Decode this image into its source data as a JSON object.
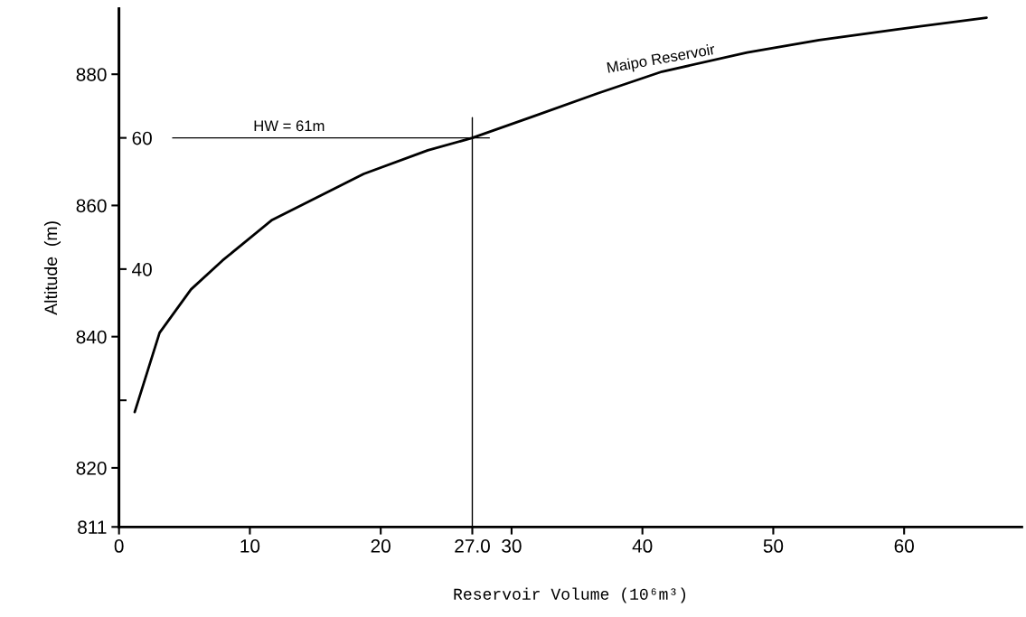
{
  "chart_data": {
    "type": "line",
    "xlabel": "Reservoir Volume (10⁶m³)",
    "ylabel": "Altitude  (m)",
    "xlim": [
      0,
      69
    ],
    "xticks": [
      0,
      10,
      20,
      {
        "value": 27,
        "label": "27.0"
      },
      30,
      40,
      50,
      60
    ],
    "ylim": [
      811,
      890
    ],
    "yticks": [
      811,
      820,
      840,
      860,
      880
    ],
    "y2lim": [
      0.7,
      79.7
    ],
    "y2ticks": [
      {
        "value": 20,
        "label": null
      },
      40,
      60
    ],
    "grid": false,
    "legend": false,
    "marker": "none",
    "line_style": "solid",
    "series": [
      {
        "name": "Maipo Reservoir",
        "color": "#000000",
        "x": [
          1.2,
          3.1,
          5.5,
          7.9,
          11.7,
          18.7,
          23.6,
          27,
          31.7,
          36.6,
          41.5,
          48,
          53.5,
          59.3,
          66.3
        ],
        "values": [
          828.5,
          840.6,
          847.2,
          851.6,
          857.8,
          864.8,
          868.4,
          870.3,
          873.6,
          877.1,
          880.4,
          883.3,
          885.2,
          886.8,
          888.6
        ]
      },
      {
        "color": "#000000",
        "x": [
          4.1,
          28.3
        ],
        "values": [
          870.3,
          870.3
        ]
      },
      {
        "color": "#000000",
        "x": [
          27,
          27
        ],
        "values": [
          811,
          873.4
        ]
      }
    ],
    "annotations": [
      {
        "text": "HW = 61m",
        "x": 13,
        "y": 870.3
      }
    ]
  }
}
